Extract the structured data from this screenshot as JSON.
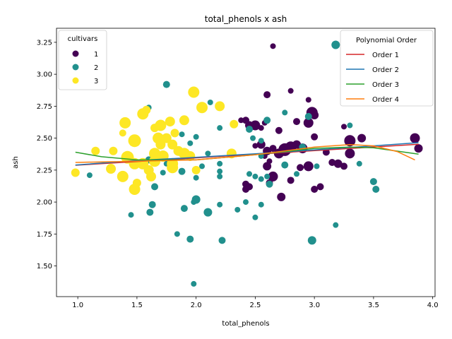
{
  "chart_data": {
    "type": "scatter",
    "title": "total_phenols x ash",
    "xlabel": "total_phenols",
    "ylabel": "ash",
    "xlim": [
      0.82,
      4.02
    ],
    "ylim": [
      1.26,
      3.36
    ],
    "x_ticks": [
      "1.0",
      "1.5",
      "2.0",
      "2.5",
      "3.0",
      "3.5",
      "4.0"
    ],
    "y_ticks": [
      "1.50",
      "1.75",
      "2.00",
      "2.25",
      "2.50",
      "2.75",
      "3.00",
      "3.25"
    ],
    "grid": false,
    "point_legend": {
      "title": "cultivars",
      "placement": "top-left",
      "entries": [
        {
          "label": "1",
          "color": "#440154"
        },
        {
          "label": "2",
          "color": "#21908d"
        },
        {
          "label": "3",
          "color": "#fde725"
        }
      ]
    },
    "line_legend": {
      "title": "Polynomial Order",
      "placement": "top-right",
      "entries": [
        {
          "label": "Order 1",
          "color": "#d62728"
        },
        {
          "label": "Order 2",
          "color": "#1f77b4"
        },
        {
          "label": "Order 3",
          "color": "#2ca02c"
        },
        {
          "label": "Order 4",
          "color": "#ff7f0e"
        }
      ]
    },
    "series": [
      {
        "name": "1",
        "color": "#440154",
        "points": [
          [
            2.65,
            3.22,
            4
          ],
          [
            2.8,
            2.87,
            4
          ],
          [
            2.6,
            2.84,
            5
          ],
          [
            2.95,
            2.8,
            4
          ],
          [
            2.98,
            2.7,
            8
          ],
          [
            2.95,
            2.62,
            7
          ],
          [
            3.0,
            2.68,
            6
          ],
          [
            2.85,
            2.63,
            5
          ],
          [
            3.25,
            2.59,
            4
          ],
          [
            3.3,
            2.48,
            8
          ],
          [
            3.4,
            2.5,
            6
          ],
          [
            3.3,
            2.38,
            7
          ],
          [
            3.25,
            2.28,
            5
          ],
          [
            3.2,
            2.3,
            6
          ],
          [
            3.15,
            2.31,
            5
          ],
          [
            3.1,
            2.39,
            5
          ],
          [
            3.0,
            2.51,
            5
          ],
          [
            2.9,
            2.42,
            7
          ],
          [
            2.85,
            2.45,
            6
          ],
          [
            2.8,
            2.43,
            8
          ],
          [
            2.75,
            2.41,
            9
          ],
          [
            2.7,
            2.38,
            7
          ],
          [
            2.65,
            2.42,
            5
          ],
          [
            2.6,
            2.4,
            6
          ],
          [
            2.55,
            2.45,
            6
          ],
          [
            2.5,
            2.6,
            7
          ],
          [
            2.45,
            2.6,
            6
          ],
          [
            2.42,
            2.64,
            5
          ],
          [
            2.38,
            2.64,
            4
          ],
          [
            2.5,
            2.44,
            4
          ],
          [
            2.6,
            2.28,
            6
          ],
          [
            2.65,
            2.2,
            7
          ],
          [
            2.62,
            2.15,
            5
          ],
          [
            2.72,
            2.04,
            6
          ],
          [
            2.8,
            2.17,
            5
          ],
          [
            2.95,
            2.28,
            7
          ],
          [
            2.88,
            2.27,
            5
          ],
          [
            3.0,
            2.1,
            5
          ],
          [
            3.05,
            2.12,
            5
          ],
          [
            3.85,
            2.5,
            7
          ],
          [
            3.88,
            2.42,
            6
          ],
          [
            2.42,
            2.1,
            5
          ],
          [
            2.42,
            2.14,
            5
          ],
          [
            2.45,
            2.12,
            5
          ],
          [
            2.58,
            2.36,
            4
          ],
          [
            2.62,
            2.32,
            4
          ],
          [
            2.7,
            2.56,
            5
          ],
          [
            2.58,
            2.62,
            4
          ],
          [
            2.55,
            2.58,
            4
          ]
        ]
      },
      {
        "name": "2",
        "color": "#21908d",
        "points": [
          [
            3.18,
            3.23,
            6
          ],
          [
            1.75,
            2.92,
            5
          ],
          [
            1.6,
            2.74,
            4
          ],
          [
            2.12,
            2.78,
            4
          ],
          [
            2.45,
            2.57,
            5
          ],
          [
            2.48,
            2.5,
            4
          ],
          [
            2.55,
            2.48,
            4
          ],
          [
            2.6,
            2.64,
            5
          ],
          [
            1.88,
            2.53,
            4
          ],
          [
            1.95,
            2.46,
            4
          ],
          [
            2.0,
            2.51,
            4
          ],
          [
            2.1,
            2.38,
            4
          ],
          [
            2.2,
            2.58,
            4
          ],
          [
            2.2,
            2.3,
            4
          ],
          [
            2.05,
            2.28,
            4
          ],
          [
            2.2,
            2.24,
            4
          ],
          [
            2.2,
            2.2,
            4
          ],
          [
            1.88,
            2.24,
            5
          ],
          [
            1.72,
            2.23,
            4
          ],
          [
            1.6,
            2.33,
            5
          ],
          [
            1.65,
            2.12,
            5
          ],
          [
            1.1,
            2.21,
            4
          ],
          [
            1.45,
            1.9,
            4
          ],
          [
            1.61,
            1.92,
            5
          ],
          [
            1.63,
            1.98,
            5
          ],
          [
            1.84,
            1.75,
            4
          ],
          [
            1.9,
            1.95,
            5
          ],
          [
            1.98,
            2.0,
            4
          ],
          [
            2.0,
            2.02,
            6
          ],
          [
            2.1,
            1.92,
            6
          ],
          [
            2.2,
            1.98,
            4
          ],
          [
            2.22,
            1.7,
            5
          ],
          [
            1.95,
            1.71,
            5
          ],
          [
            1.98,
            1.36,
            4
          ],
          [
            2.35,
            1.94,
            4
          ],
          [
            2.42,
            2.0,
            4
          ],
          [
            2.5,
            1.88,
            4
          ],
          [
            2.55,
            1.98,
            4
          ],
          [
            2.45,
            2.22,
            4
          ],
          [
            2.5,
            2.2,
            4
          ],
          [
            2.55,
            2.18,
            4
          ],
          [
            2.6,
            2.2,
            4
          ],
          [
            2.62,
            2.14,
            5
          ],
          [
            2.75,
            2.29,
            5
          ],
          [
            2.85,
            2.22,
            4
          ],
          [
            2.9,
            2.43,
            5
          ],
          [
            2.95,
            2.67,
            5
          ],
          [
            3.02,
            2.28,
            4
          ],
          [
            2.98,
            1.7,
            6
          ],
          [
            3.18,
            1.82,
            4
          ],
          [
            3.3,
            2.6,
            4
          ],
          [
            3.38,
            2.3,
            4
          ],
          [
            3.5,
            2.16,
            5
          ],
          [
            3.52,
            2.1,
            5
          ],
          [
            2.75,
            2.7,
            4
          ],
          [
            2.55,
            2.36,
            4
          ],
          [
            2.0,
            2.19,
            4
          ],
          [
            1.75,
            2.3,
            4
          ]
        ]
      },
      {
        "name": "3",
        "color": "#fde725",
        "points": [
          [
            0.98,
            2.23,
            6
          ],
          [
            1.15,
            2.4,
            6
          ],
          [
            1.28,
            2.26,
            7
          ],
          [
            1.3,
            2.4,
            6
          ],
          [
            1.38,
            2.54,
            5
          ],
          [
            1.4,
            2.62,
            8
          ],
          [
            1.38,
            2.2,
            8
          ],
          [
            1.42,
            2.35,
            9
          ],
          [
            1.48,
            2.48,
            9
          ],
          [
            1.48,
            2.3,
            8
          ],
          [
            1.5,
            2.15,
            6
          ],
          [
            1.48,
            2.1,
            8
          ],
          [
            1.55,
            2.3,
            8
          ],
          [
            1.55,
            2.69,
            8
          ],
          [
            1.58,
            2.72,
            6
          ],
          [
            1.6,
            2.25,
            7
          ],
          [
            1.62,
            2.2,
            7
          ],
          [
            1.65,
            2.32,
            8
          ],
          [
            1.65,
            2.38,
            8
          ],
          [
            1.65,
            2.58,
            6
          ],
          [
            1.68,
            2.5,
            8
          ],
          [
            1.7,
            2.6,
            8
          ],
          [
            1.7,
            2.45,
            7
          ],
          [
            1.72,
            2.36,
            8
          ],
          [
            1.75,
            2.5,
            7
          ],
          [
            1.78,
            2.63,
            7
          ],
          [
            1.8,
            2.45,
            7
          ],
          [
            1.8,
            2.3,
            8
          ],
          [
            1.8,
            2.27,
            8
          ],
          [
            1.82,
            2.54,
            6
          ],
          [
            1.85,
            2.4,
            7
          ],
          [
            1.9,
            2.64,
            7
          ],
          [
            1.9,
            2.38,
            8
          ],
          [
            1.95,
            2.36,
            7
          ],
          [
            1.98,
            2.86,
            8
          ],
          [
            2.0,
            2.25,
            6
          ],
          [
            2.05,
            2.74,
            8
          ],
          [
            2.2,
            2.75,
            7
          ],
          [
            2.3,
            2.38,
            7
          ],
          [
            2.32,
            2.61,
            6
          ]
        ]
      }
    ],
    "fit_lines": [
      {
        "name": "Order 1",
        "color": "#d62728",
        "x": [
          0.98,
          3.88
        ],
        "y": [
          2.288,
          2.452
        ]
      },
      {
        "name": "Order 2",
        "color": "#1f77b4",
        "x": [
          0.98,
          1.5,
          2.0,
          2.5,
          3.0,
          3.5,
          3.88
        ],
        "y": [
          2.29,
          2.325,
          2.35,
          2.378,
          2.408,
          2.44,
          2.465
        ]
      },
      {
        "name": "Order 3",
        "color": "#2ca02c",
        "x": [
          0.98,
          1.2,
          1.5,
          2.0,
          2.5,
          3.0,
          3.3,
          3.5,
          3.88
        ],
        "y": [
          2.39,
          2.355,
          2.33,
          2.33,
          2.37,
          2.42,
          2.43,
          2.425,
          2.375
        ]
      },
      {
        "name": "Order 4",
        "color": "#ff7f0e",
        "x": [
          0.98,
          1.5,
          2.0,
          2.5,
          3.0,
          3.3,
          3.5,
          3.7,
          3.85
        ],
        "y": [
          2.31,
          2.32,
          2.33,
          2.37,
          2.43,
          2.45,
          2.44,
          2.395,
          2.33
        ]
      }
    ]
  }
}
